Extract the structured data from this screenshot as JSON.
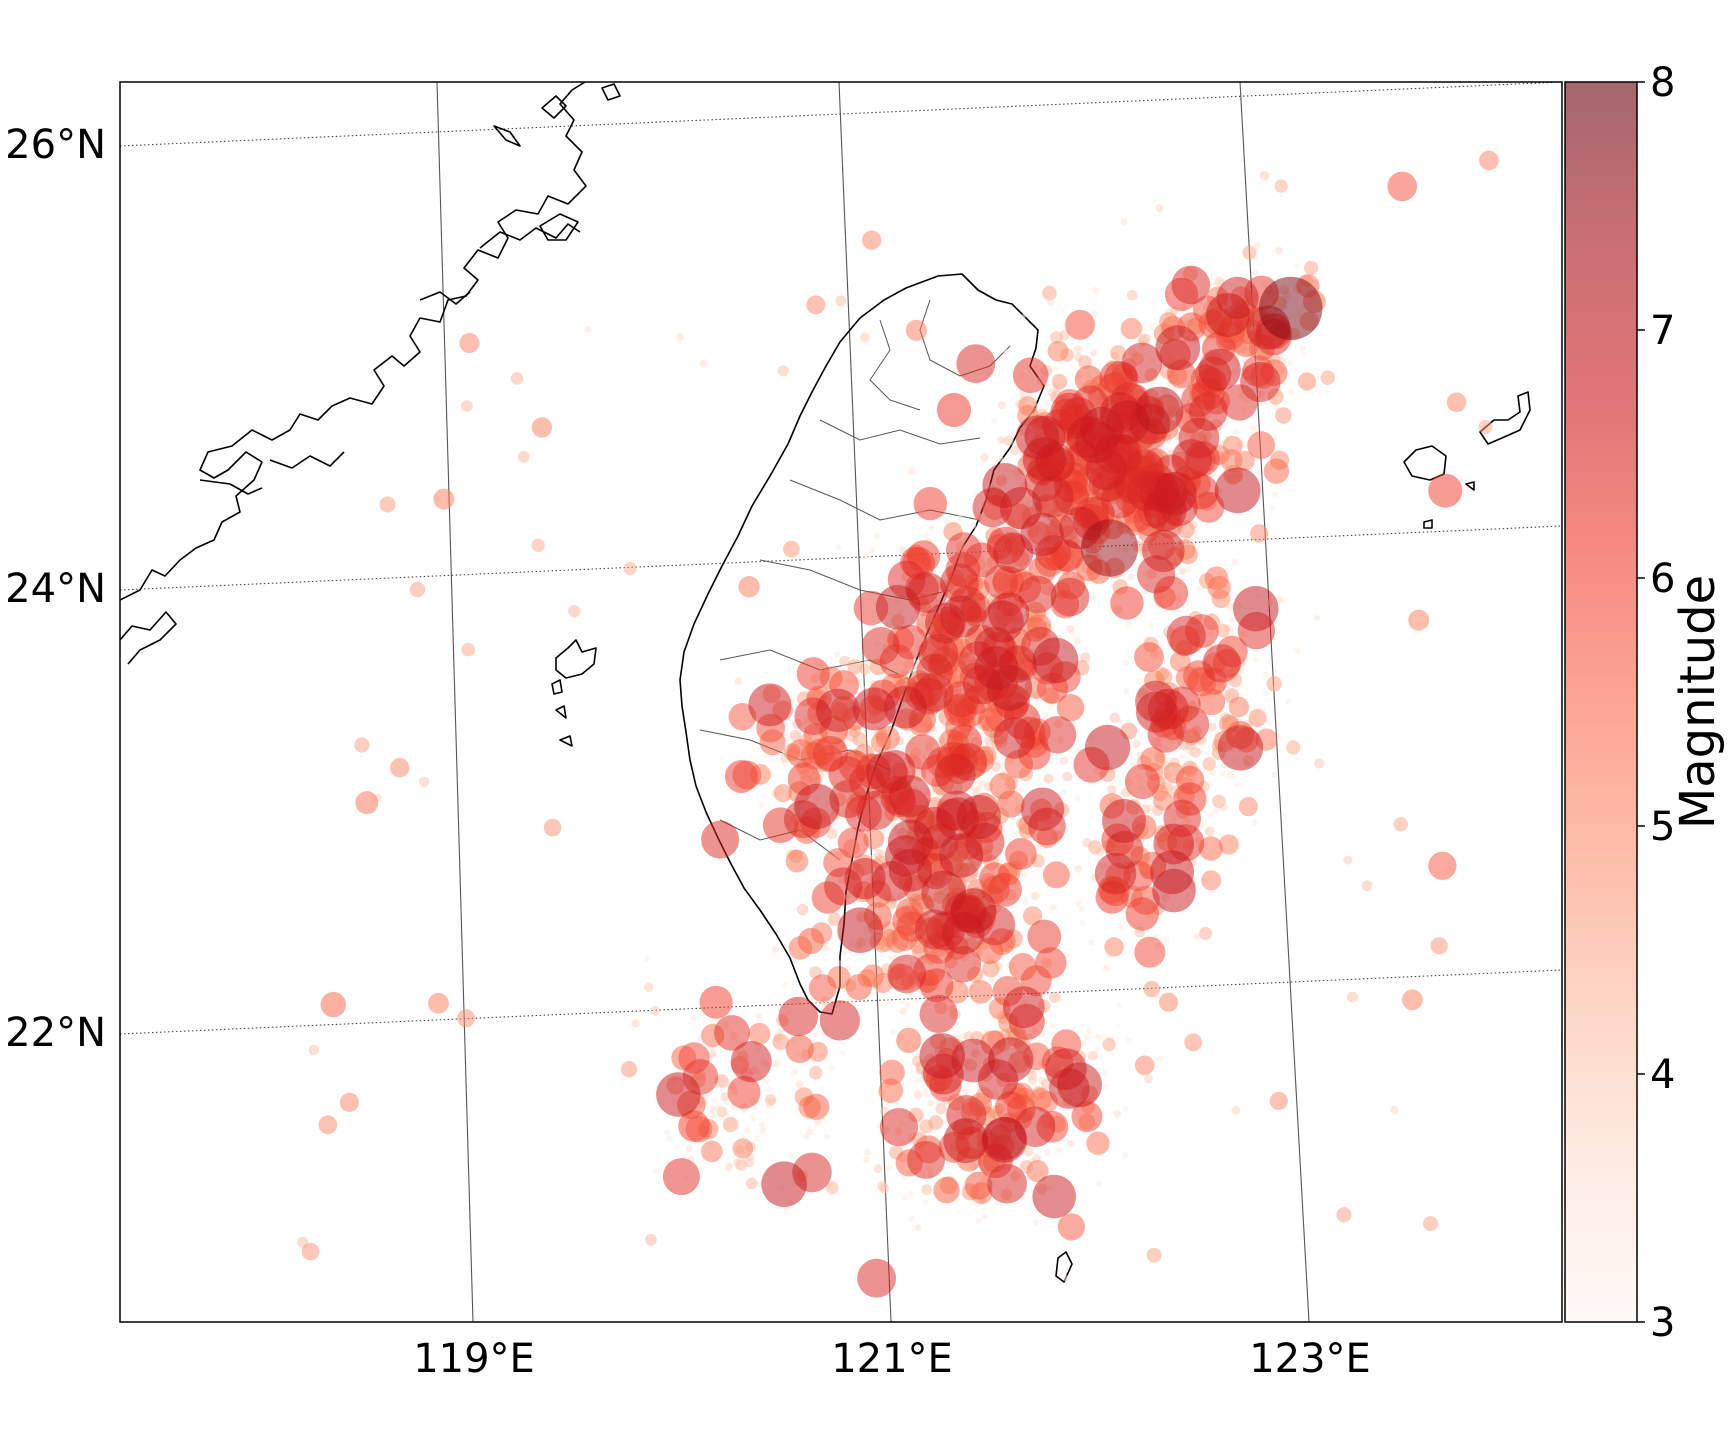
{
  "figure": {
    "lat_labels": [
      "26°N",
      "24°N",
      "22°N"
    ],
    "lon_labels": [
      "119°E",
      "121°E",
      "123°E"
    ],
    "colorbar": {
      "label": "Magnitude",
      "ticks": [
        "3",
        "4",
        "5",
        "6",
        "7",
        "8"
      ],
      "min": 3,
      "max": 8,
      "colormap": "Reds",
      "alpha": 0.5
    }
  },
  "chart_data": {
    "type": "scatter",
    "title": "",
    "xlabel": "",
    "ylabel": "",
    "xlim_lon": [
      117.6,
      124.1
    ],
    "ylim_lat": [
      20.6,
      26.2
    ],
    "encoding": "color and marker size both encode Magnitude",
    "notable_events": [
      {
        "lon": 122.7,
        "lat": 25.1,
        "mag": 7.8
      },
      {
        "lon": 121.9,
        "lat": 24.1,
        "mag": 7.5
      },
      {
        "lon": 122.1,
        "lat": 24.7,
        "mag": 7.0
      },
      {
        "lon": 122.5,
        "lat": 24.3,
        "mag": 6.9
      },
      {
        "lon": 122.4,
        "lat": 25.1,
        "mag": 6.8
      },
      {
        "lon": 122.3,
        "lat": 22.6,
        "mag": 6.8
      },
      {
        "lon": 121.2,
        "lat": 25.0,
        "mag": 6.5
      },
      {
        "lon": 121.0,
        "lat": 20.9,
        "mag": 6.5
      },
      {
        "lon": 120.4,
        "lat": 23.0,
        "mag": 6.3
      },
      {
        "lon": 123.5,
        "lat": 24.2,
        "mag": 6.2
      },
      {
        "lon": 121.2,
        "lat": 22.2,
        "mag": 6.2
      },
      {
        "lon": 121.5,
        "lat": 22.6,
        "mag": 6.2
      },
      {
        "lon": 123.6,
        "lat": 22.5,
        "mag": 5.8
      },
      {
        "lon": 118.3,
        "lat": 22.4,
        "mag": 5.6
      },
      {
        "lon": 123.2,
        "lat": 25.6,
        "mag": 5.9
      },
      {
        "lon": 118.4,
        "lat": 23.3,
        "mag": 5.4
      }
    ]
  }
}
